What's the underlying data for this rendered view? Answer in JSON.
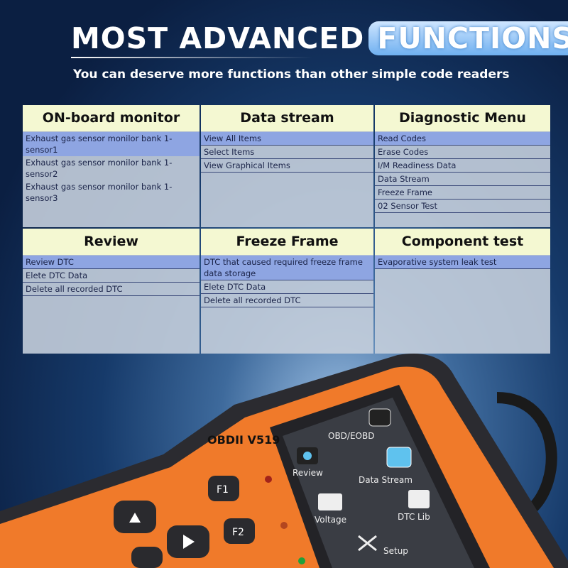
{
  "title": {
    "prefix": "MOST ADVANCED",
    "highlight": "FUNCTIONS"
  },
  "subtitle": "You can deserve more functions than other simple code readers",
  "panels": [
    {
      "header": "ON-board monitor",
      "items": [
        "Exhaust gas sensor monilor bank 1-sensor1",
        "Exhaust gas sensor monilor bank 1-sensor2",
        "Exhaust gas sensor monilor bank 1-sensor3"
      ]
    },
    {
      "header": "Data stream",
      "items": [
        "View All Items",
        "Select Items",
        "View Graphical Items"
      ]
    },
    {
      "header": "Diagnostic Menu",
      "items": [
        "Read Codes",
        "Erase Codes",
        "I/M Readiness Data",
        "Data Stream",
        "Freeze Frame",
        "02 Sensor Test"
      ]
    },
    {
      "header": "Review",
      "items": [
        "Review DTC",
        "Elete DTC Data",
        "Delete all recorded DTC"
      ]
    },
    {
      "header": "Freeze Frame",
      "items": [
        "DTC that caused required freeze frame data storage",
        "Elete DTC Data",
        "Delete all recorded DTC"
      ]
    },
    {
      "header": "Component test",
      "items": [
        "Evaporative system leak test"
      ]
    }
  ],
  "device": {
    "model": "OBDII V519",
    "buttons": [
      "F1",
      "F2"
    ],
    "menu": [
      "OBD/EOBD",
      "Review",
      "Data Stream",
      "Voltage",
      "DTC Lib",
      "Setup"
    ],
    "colors": {
      "body": "#f07a2a",
      "bezel": "#2a2a2e",
      "screen": "#3a3d44"
    }
  }
}
